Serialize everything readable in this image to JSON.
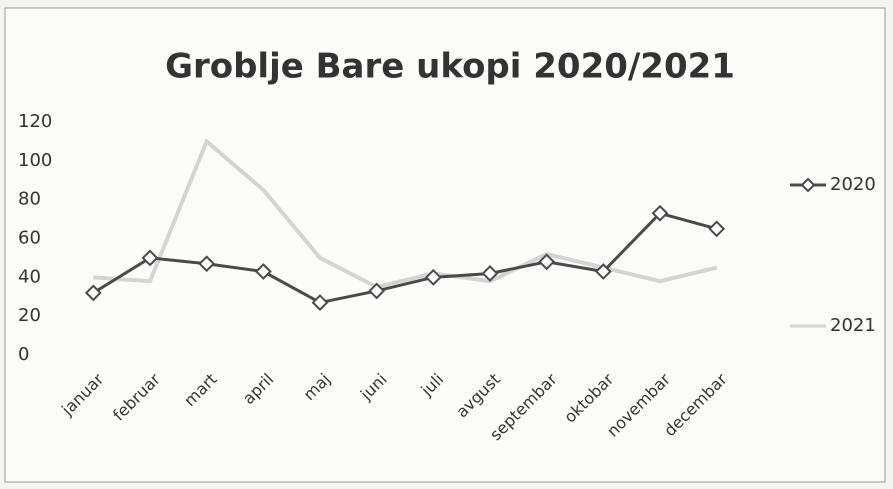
{
  "chart_data": {
    "type": "line",
    "title": "Groblje Bare ukopi  2020/2021",
    "categories": [
      "januar",
      "februar",
      "mart",
      "april",
      "maj",
      "juni",
      "juli",
      "avgust",
      "septembar",
      "oktobar",
      "novembar",
      "decembar"
    ],
    "series": [
      {
        "name": "2020",
        "color": "#4a4a4a",
        "values": [
          32,
          50,
          47,
          43,
          27,
          33,
          40,
          42,
          48,
          43,
          73,
          65
        ]
      },
      {
        "name": "2021",
        "color": "#d4d4d4",
        "values": [
          40,
          38,
          110,
          85,
          50,
          35,
          42,
          38,
          52,
          45,
          38,
          45
        ]
      }
    ],
    "ylim": [
      0,
      120
    ],
    "yticks": [
      0,
      20,
      40,
      60,
      80,
      100,
      120
    ],
    "grid": false,
    "legend": "right"
  }
}
